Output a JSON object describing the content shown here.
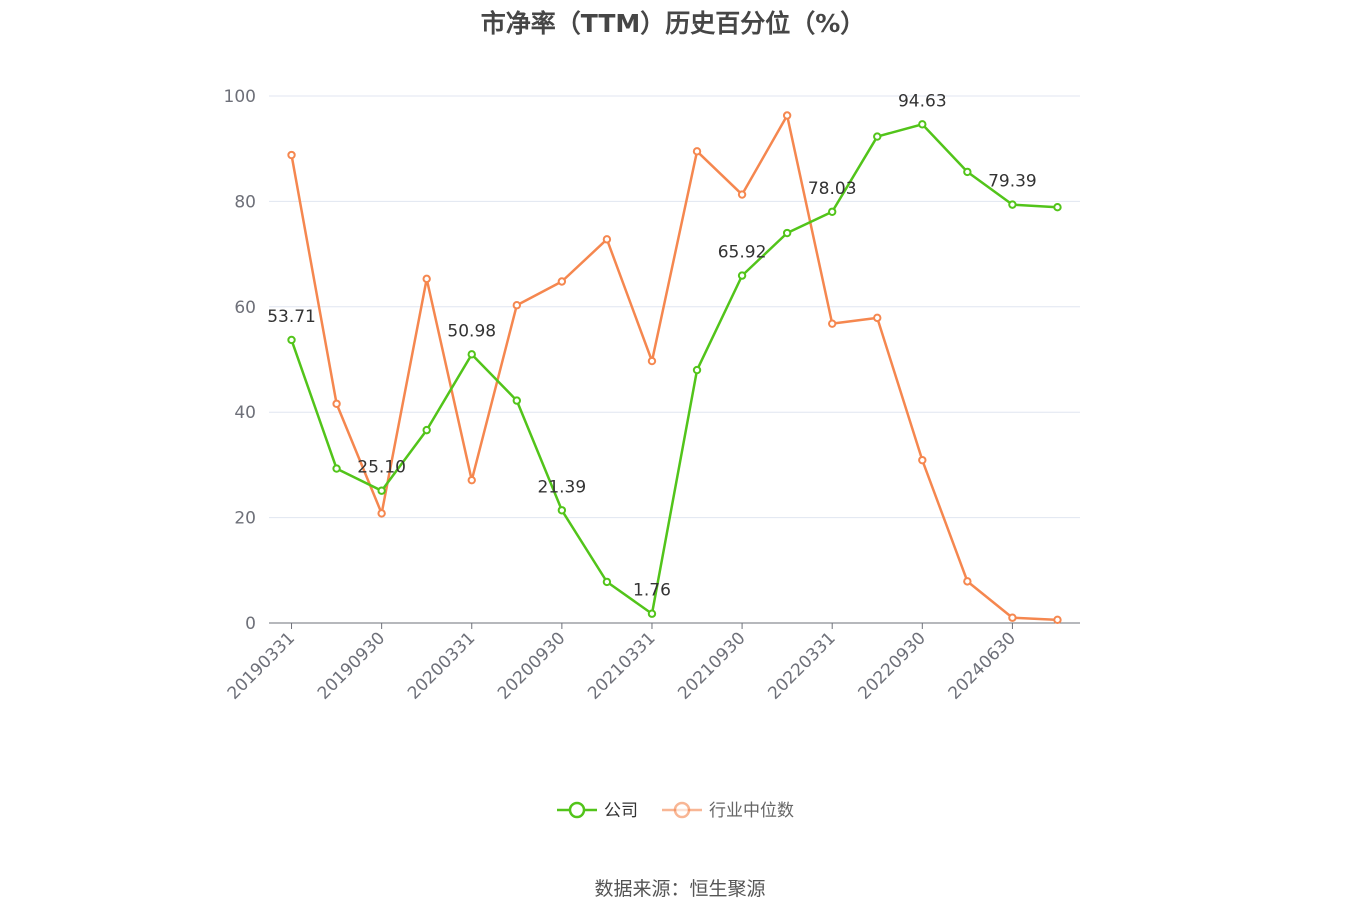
{
  "title": "市净率（TTM）历史百分位（%）",
  "source": "数据来源：恒生聚源",
  "chart_data": {
    "type": "line",
    "title": "市净率（TTM）历史百分位（%）",
    "xlabel": "",
    "ylabel": "",
    "ylim": [
      0,
      100
    ],
    "yticks": [
      0,
      20,
      40,
      60,
      80,
      100
    ],
    "grid": true,
    "legend_position": "bottom",
    "x": [
      "20190331",
      "",
      "20190930",
      "",
      "20200331",
      "",
      "20200930",
      "",
      "20210331",
      "",
      "20210930",
      "",
      "20220331",
      "",
      "20220930",
      "",
      "20240630",
      ""
    ],
    "x_tick_labels": [
      "20190331",
      "20190930",
      "20200331",
      "20200930",
      "20210331",
      "20210930",
      "20220331",
      "20220930",
      "20240630"
    ],
    "series": [
      {
        "name": "公司",
        "color": "#52c41a",
        "values": [
          53.71,
          29.3,
          25.1,
          36.6,
          50.98,
          42.2,
          21.39,
          7.8,
          1.76,
          48.0,
          65.92,
          74.0,
          78.03,
          92.3,
          94.63,
          85.6,
          79.39,
          78.9
        ],
        "labels": {
          "0": "53.71",
          "2": "25.10",
          "4": "50.98",
          "6": "21.39",
          "8": "1.76",
          "10": "65.92",
          "12": "78.03",
          "14": "94.63",
          "16": "79.39"
        }
      },
      {
        "name": "行业中位数",
        "color": "#f5874f",
        "values": [
          88.8,
          41.6,
          20.8,
          65.3,
          27.1,
          60.3,
          64.8,
          72.8,
          49.7,
          89.5,
          81.3,
          96.3,
          56.8,
          57.9,
          30.9,
          7.9,
          1.0,
          0.6
        ]
      }
    ]
  }
}
